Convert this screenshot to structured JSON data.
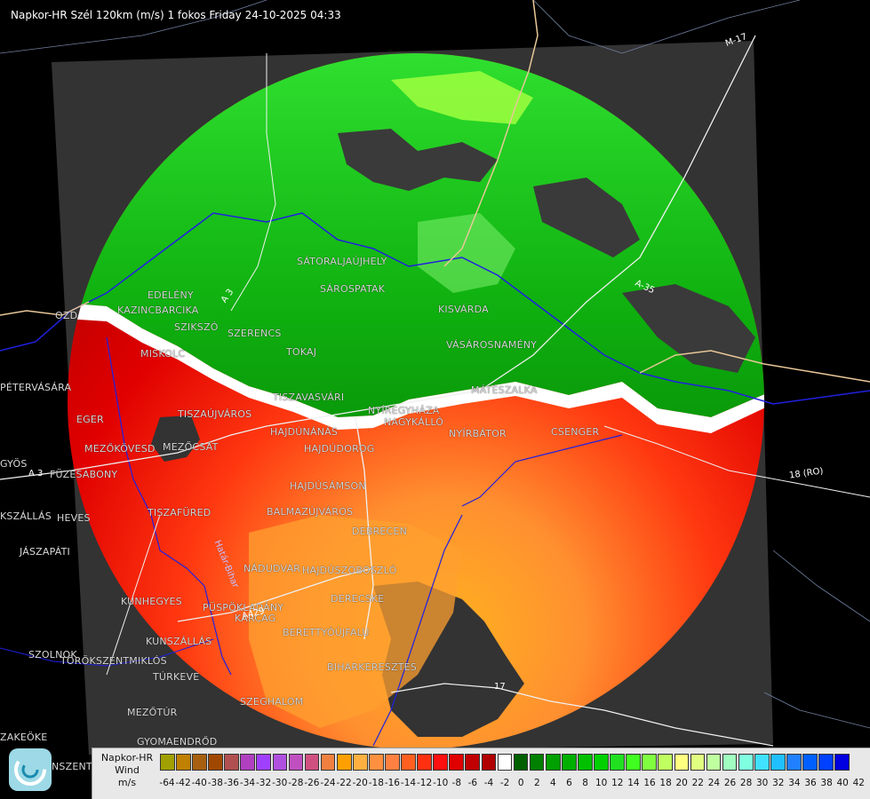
{
  "header": {
    "title": "Napkor-HR Szél 120km (m/s) 1 fokos Friday 24-10-2025 04:33"
  },
  "places": [
    "EDELÉNY",
    "KAZINCBARCIKA",
    "SZIKSZÓ",
    "SZERENCS",
    "MISKOLC",
    "TOKAJ",
    "SÁTORALJAÚJHELY",
    "SÁROSPATAK",
    "KISVÁRDA",
    "VÁSÁROSNAMÉNY",
    "TISZAVASVÁRI",
    "NYÍREGYHÁZA",
    "NAGYKÁLLÓ",
    "MÁTÉSZALKA",
    "CSENGER",
    "NYÍRBÁTOR",
    "EGER",
    "TISZAÚJVÁROS",
    "HAJDÚNÁNÁS",
    "HAJDÚDOROG",
    "MEZŐKÖVESD",
    "MEZŐCSÁT",
    "FÜZESABONY",
    "PÉTERVÁSÁRA",
    "GYÖS",
    "HEVES",
    "JÁSZAPÁTI",
    "TISZAFÜRED",
    "HAJDÚSZOBOSZLÓ",
    "BALMAZÚJVÁROS",
    "DEBRECEN",
    "NÁDUDVAR",
    "DERECSKE",
    "KUNHEGYES",
    "PÜSPÖKLADÁNY",
    "BERETTYÓÚJFALU",
    "KARCAG",
    "KUNSZÁLLÁS",
    "TÖRÖKSZENTMIKLÓS",
    "SZOLNOK",
    "TÚRKEVE",
    "BIHARKERESZTES",
    "SZEGHALOM",
    "MEZŐTÚR",
    "GYOMAENDRŐD",
    "KSZÁLLÁS",
    "ZAKEÖKE",
    "NSZENTM",
    "HAJDÚSÁMSON",
    "OZD"
  ],
  "roads": [
    "A 3",
    "M-17",
    "A-35",
    "18 (RO)",
    "A429",
    "Határ-Bihar",
    "17",
    "A 3"
  ],
  "legend": {
    "title_lines": [
      "Napkor-HR",
      "Wind",
      "m/s"
    ],
    "tick_labels": [
      "-64",
      "-42",
      "-40",
      "-38",
      "-36",
      "-34",
      "-32",
      "-30",
      "-28",
      "-26",
      "-24",
      "-22",
      "-20",
      "-18",
      "-16",
      "-14",
      "-12",
      "-10",
      "-8",
      "-6",
      "-4",
      "-2",
      "0",
      "2",
      "4",
      "6",
      "8",
      "10",
      "12",
      "14",
      "16",
      "18",
      "20",
      "22",
      "24",
      "26",
      "28",
      "30",
      "32",
      "34",
      "36",
      "38",
      "40",
      "42"
    ],
    "colors": [
      "#a0a000",
      "#c08000",
      "#a86010",
      "#a04800",
      "#b05050",
      "#b040c0",
      "#a040ff",
      "#b050e0",
      "#c050c0",
      "#d05080",
      "#f08040",
      "#ffa000",
      "#ffb040",
      "#ff9040",
      "#ff8040",
      "#ff6020",
      "#ff3010",
      "#ff1010",
      "#e00000",
      "#c00000",
      "#b00000",
      "#ffffff",
      "#006000",
      "#008000",
      "#00a000",
      "#00b000",
      "#00c000",
      "#00d000",
      "#20e020",
      "#40ff20",
      "#80ff40",
      "#c0ff60",
      "#ffff80",
      "#e0ff80",
      "#c0ffa0",
      "#a0ffc0",
      "#80ffe0",
      "#40e0ff",
      "#20c0ff",
      "#2080ff",
      "#0060ff",
      "#0040ff",
      "#0000e0"
    ]
  },
  "colors": {
    "background": "#000000",
    "radar_frame": "#333333",
    "inbound_green": "#00c000",
    "outbound_red": "#e00000",
    "legend_bg": "#e8e8e8"
  }
}
